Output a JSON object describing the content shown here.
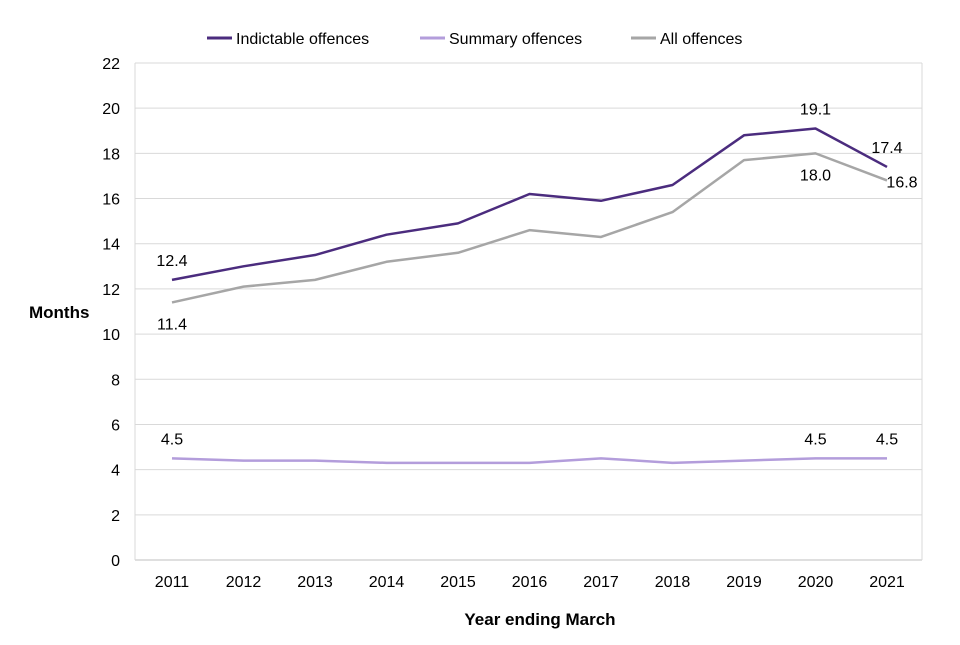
{
  "chart_data": {
    "type": "line",
    "title": "",
    "xlabel": "Year ending March",
    "ylabel": "Months",
    "ylim": [
      0,
      22
    ],
    "yticks": [
      0,
      2,
      4,
      6,
      8,
      10,
      12,
      14,
      16,
      18,
      20,
      22
    ],
    "grid": true,
    "legend_position": "top",
    "x": [
      "2011",
      "2012",
      "2013",
      "2014",
      "2015",
      "2016",
      "2017",
      "2018",
      "2019",
      "2020",
      "2021"
    ],
    "series": [
      {
        "name": "Indictable offences",
        "color": "#4b2c7e",
        "values": [
          12.4,
          13.0,
          13.5,
          14.4,
          14.9,
          16.2,
          15.9,
          16.6,
          18.8,
          19.1,
          17.4
        ],
        "labels": [
          {
            "index": 0,
            "text": "12.4",
            "pos": "above"
          },
          {
            "index": 9,
            "text": "19.1",
            "pos": "above"
          },
          {
            "index": 10,
            "text": "17.4",
            "pos": "above"
          }
        ]
      },
      {
        "name": "Summary offences",
        "color": "#b39ddb",
        "values": [
          4.5,
          4.4,
          4.4,
          4.3,
          4.3,
          4.3,
          4.5,
          4.3,
          4.4,
          4.5,
          4.5
        ],
        "labels": [
          {
            "index": 0,
            "text": "4.5",
            "pos": "above"
          },
          {
            "index": 9,
            "text": "4.5",
            "pos": "above"
          },
          {
            "index": 10,
            "text": "4.5",
            "pos": "above"
          }
        ]
      },
      {
        "name": "All offences",
        "color": "#a6a6a6",
        "values": [
          11.4,
          12.1,
          12.4,
          13.2,
          13.6,
          14.6,
          14.3,
          15.4,
          17.7,
          18.0,
          16.8
        ],
        "labels": [
          {
            "index": 0,
            "text": "11.4",
            "pos": "below"
          },
          {
            "index": 9,
            "text": "18.0",
            "pos": "below"
          },
          {
            "index": 10,
            "text": "16.8",
            "pos": "right"
          }
        ]
      }
    ]
  }
}
